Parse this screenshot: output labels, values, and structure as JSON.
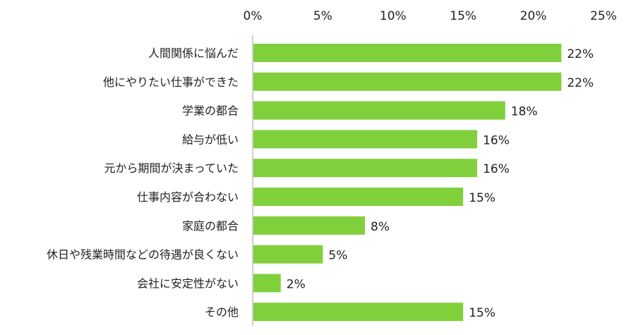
{
  "chart_data": {
    "type": "bar",
    "orientation": "horizontal",
    "categories": [
      "人間関係に悩んだ",
      "他にやりたい仕事ができた",
      "学業の都合",
      "給与が低い",
      "元から期間が決まっていた",
      "仕事内容が合わない",
      "家庭の都合",
      "休日や残業時間などの待遇が良くない",
      "会社に安定性がない",
      "その他"
    ],
    "values": [
      22,
      22,
      18,
      16,
      16,
      15,
      8,
      5,
      2,
      15
    ],
    "value_labels": [
      "22%",
      "22%",
      "18%",
      "16%",
      "16%",
      "15%",
      "8%",
      "5%",
      "2%",
      "15%"
    ],
    "xticks": [
      0,
      5,
      10,
      15,
      20,
      25
    ],
    "xtick_labels": [
      "0%",
      "5%",
      "10%",
      "15%",
      "20%",
      "25%"
    ],
    "xlim": [
      0,
      25
    ],
    "axis_position": "top",
    "grid": false,
    "legend": "none",
    "bar_color": "#80d03c",
    "axis_color": "#bfbfbf"
  }
}
